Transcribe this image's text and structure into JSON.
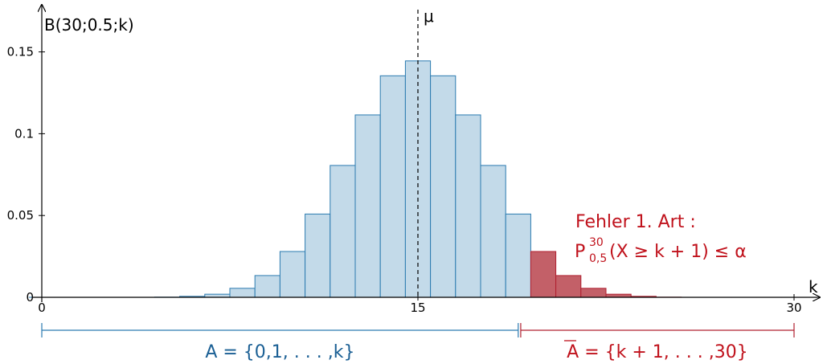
{
  "chart_data": {
    "type": "bar",
    "title": "",
    "ylabel": "B(30;0.5;k)",
    "xlabel": "k",
    "x_ticks": [
      "0",
      "15",
      "30"
    ],
    "y_ticks": [
      "0",
      "0.05",
      "0.1",
      "0.15"
    ],
    "ylim": [
      0,
      0.16
    ],
    "xlim": [
      -0.2,
      31.5
    ],
    "n": 30,
    "p": 0.5,
    "critical_k": 19,
    "mean_label": "μ",
    "mean_value": 15,
    "categories": [
      0,
      1,
      2,
      3,
      4,
      5,
      6,
      7,
      8,
      9,
      10,
      11,
      12,
      13,
      14,
      15,
      16,
      17,
      18,
      19,
      20,
      21,
      22,
      23,
      24,
      25,
      26,
      27,
      28,
      29,
      30
    ],
    "values": [
      0.0,
      0.0,
      0.0,
      0.0,
      0.0,
      0.0001,
      0.0006,
      0.0019,
      0.0055,
      0.0133,
      0.028,
      0.0509,
      0.0806,
      0.1115,
      0.1354,
      0.1445,
      0.1354,
      0.1115,
      0.0806,
      0.0509,
      0.028,
      0.0133,
      0.0055,
      0.0019,
      0.0006,
      0.0001,
      0.0,
      0.0,
      0.0,
      0.0,
      0.0
    ],
    "regions": [
      {
        "name": "A",
        "label": "A = {0,1, . . . ,k}",
        "from": 0,
        "to": 19,
        "color": "#c3dae9",
        "stroke": "#2b7bb0"
      },
      {
        "name": "A-bar",
        "label": "A = {k + 1, . . . ,30}",
        "from": 20,
        "to": 30,
        "color": "#c36068",
        "stroke": "#b02030"
      }
    ],
    "annotation": {
      "line1": "Fehler 1. Art :",
      "line2_main": "P",
      "line2_sup": "30",
      "line2_sub": "0,5",
      "line2_rest": "(X ≥ k + 1) ≤ α"
    }
  },
  "colors": {
    "acceptance_fill": "#c3dae9",
    "acceptance_stroke": "#2b7bb0",
    "rejection_fill": "#c36068",
    "rejection_stroke": "#b02030",
    "red_text": "#c0121c",
    "blue_text": "#1a5f94"
  }
}
